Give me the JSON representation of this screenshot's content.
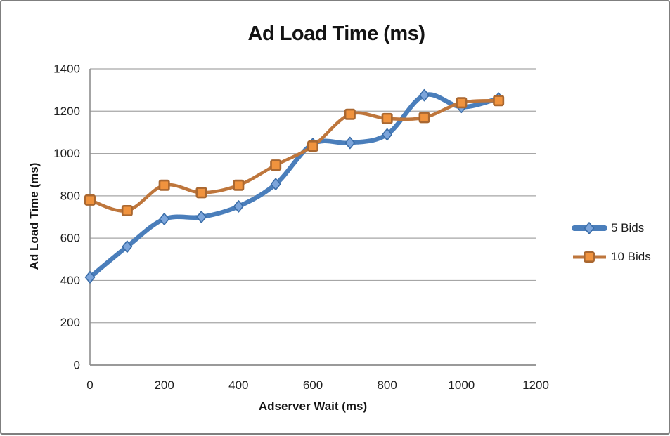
{
  "window": {
    "background": "#FFFFFF",
    "border_color": "#7F7F7F"
  },
  "chart_data": {
    "type": "line",
    "title": "Ad Load Time (ms)",
    "xlabel": "Adserver Wait (ms)",
    "ylabel": "Ad Load Time (ms)",
    "x": [
      0,
      100,
      200,
      300,
      400,
      500,
      600,
      700,
      800,
      900,
      1000,
      1100
    ],
    "series": [
      {
        "name": "5 Bids",
        "marker": "diamond",
        "line_color": "#4A7EBB",
        "marker_fill": "#7CA5DB",
        "marker_stroke": "#3A6DA8",
        "values": [
          415,
          560,
          690,
          700,
          750,
          855,
          1045,
          1050,
          1090,
          1275,
          1220,
          1260
        ]
      },
      {
        "name": "10 Bids",
        "marker": "square",
        "line_color": "#BE763C",
        "marker_fill": "#F0933E",
        "marker_stroke": "#A96730",
        "values": [
          780,
          730,
          850,
          815,
          850,
          945,
          1035,
          1185,
          1165,
          1170,
          1240,
          1250
        ]
      }
    ],
    "xlim": [
      0,
      1200
    ],
    "ylim": [
      0,
      1400
    ],
    "x_ticks": [
      0,
      200,
      400,
      600,
      800,
      1000,
      1200
    ],
    "y_ticks": [
      0,
      200,
      400,
      600,
      800,
      1000,
      1200,
      1400
    ],
    "grid": true,
    "smooth": true,
    "legend_position": "right",
    "gridline_color": "#A6A6A6",
    "axis_color": "#8E8E8E",
    "text_color": "#1F1F1F"
  }
}
